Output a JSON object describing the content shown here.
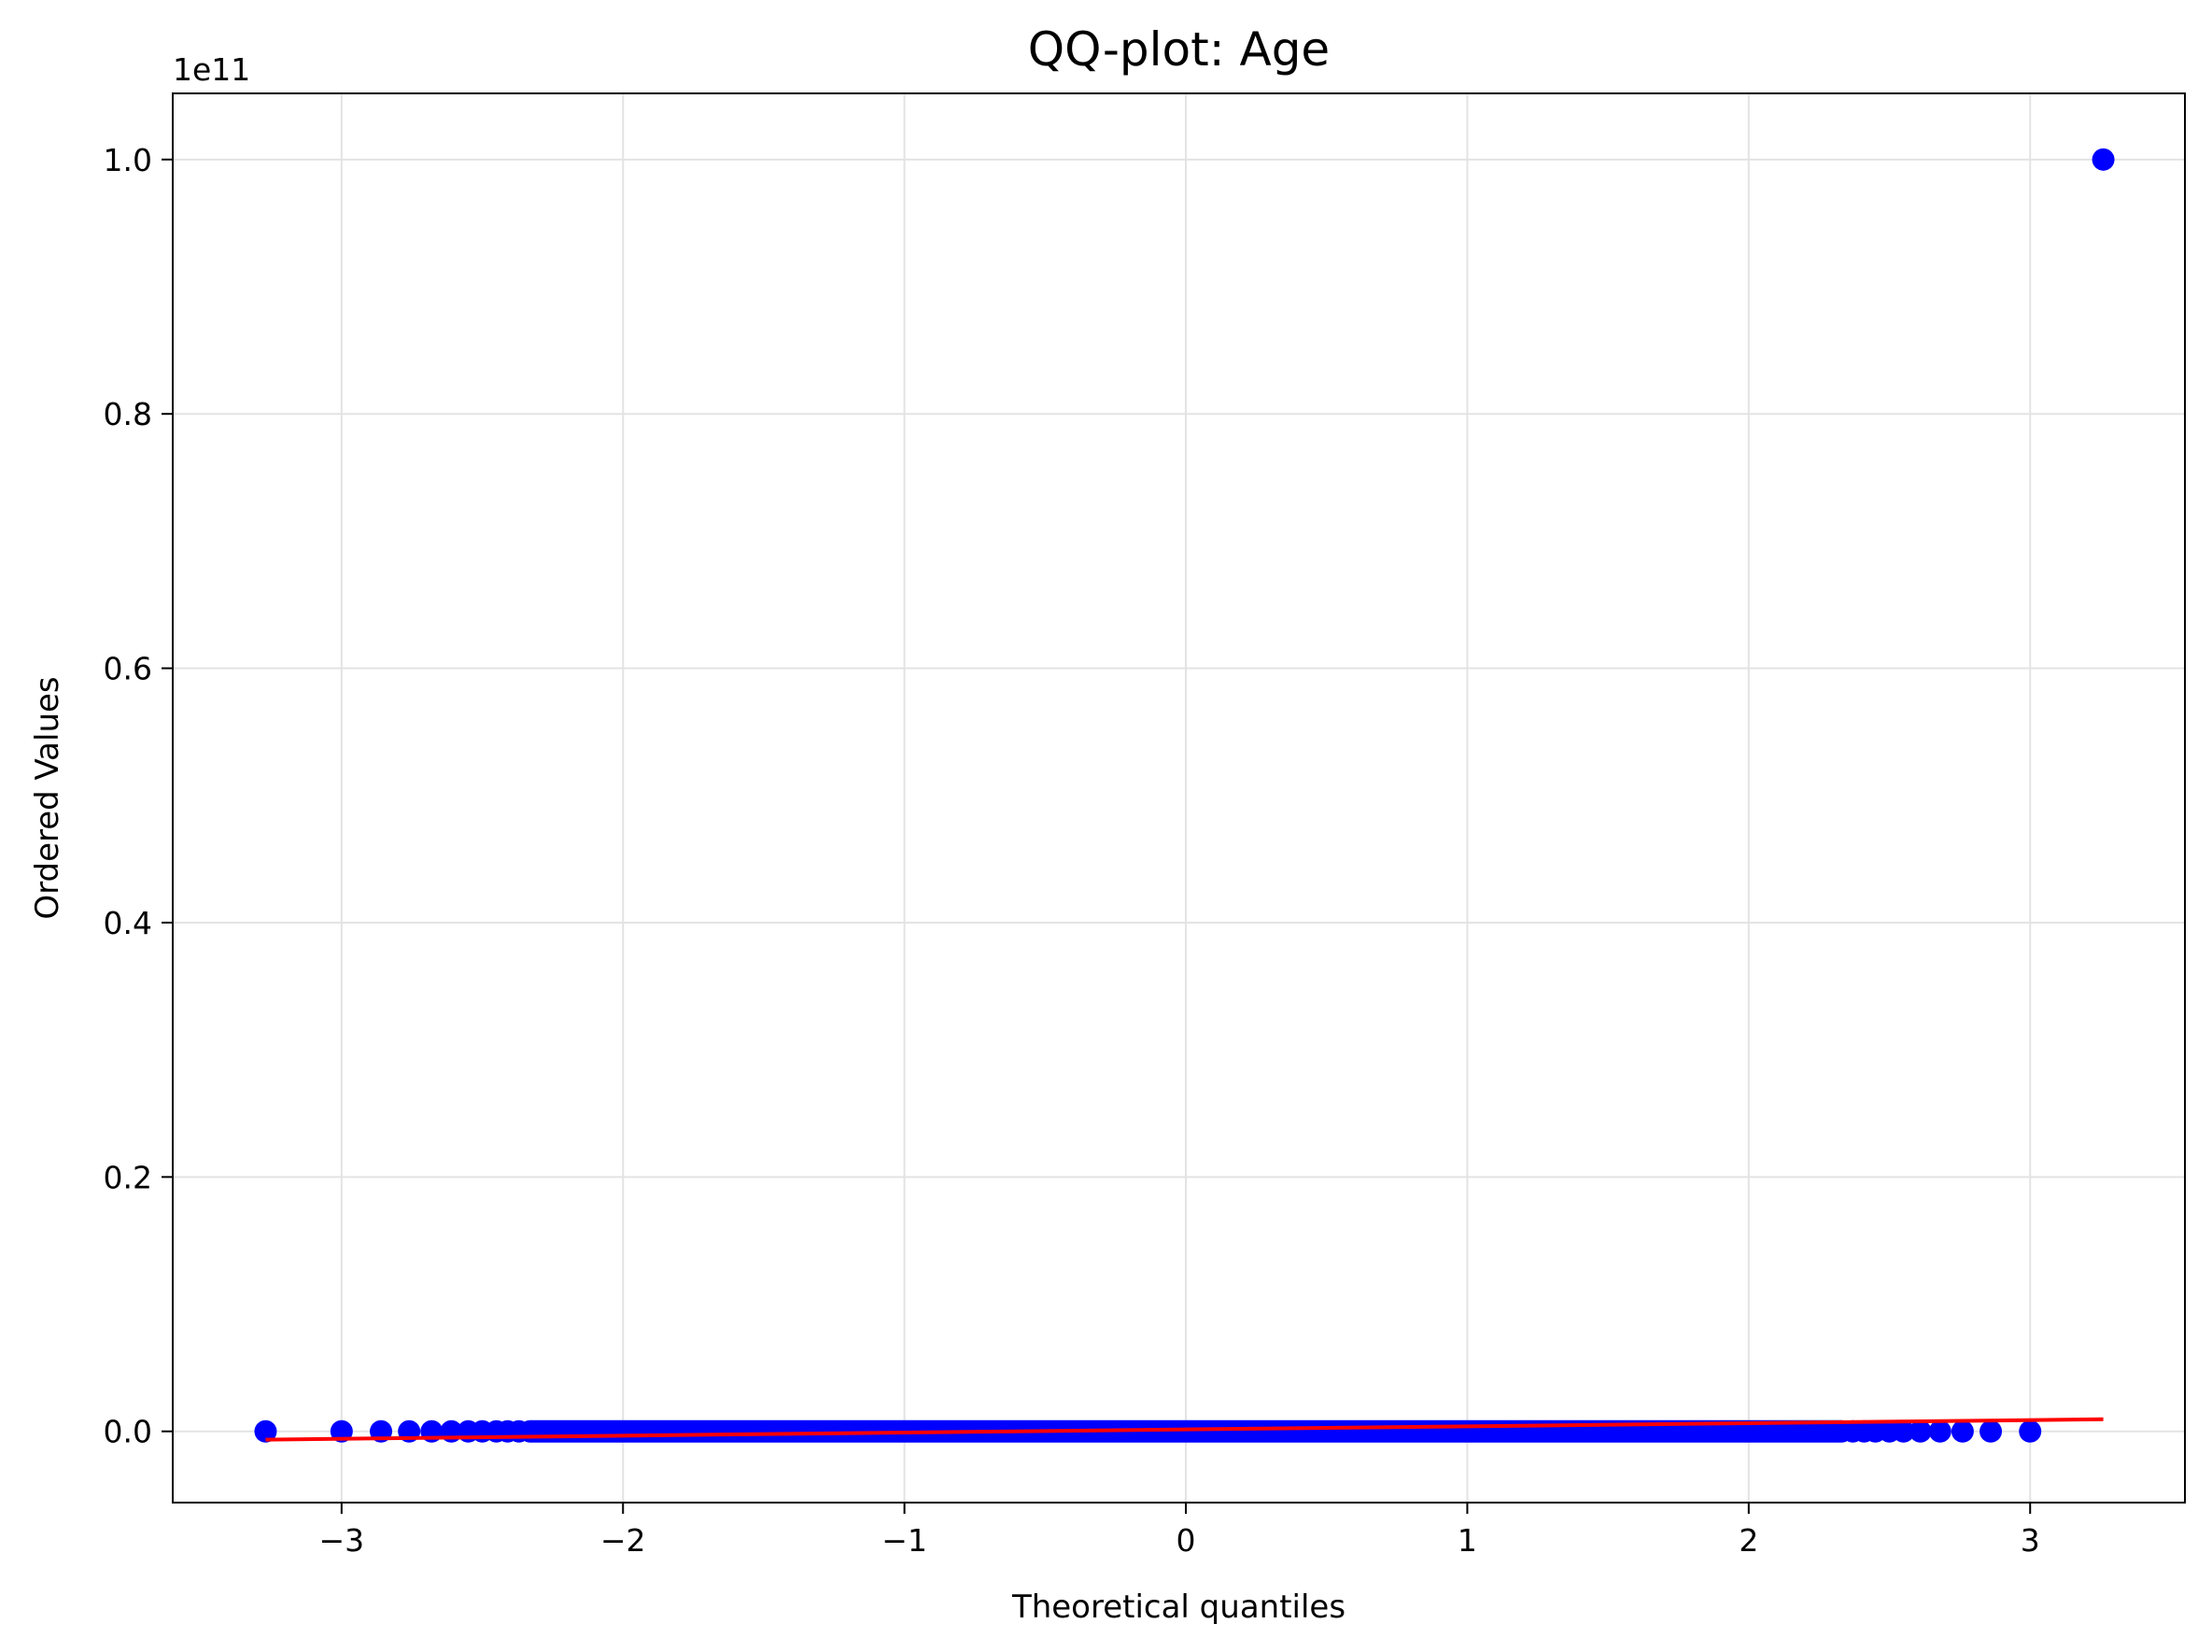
{
  "chart_data": {
    "type": "scatter",
    "title": "QQ-plot: Age",
    "xlabel": "Theoretical quantiles",
    "ylabel": "Ordered Values",
    "y_scale_factor_label": "1e11",
    "xlim": [
      -3.6,
      3.55
    ],
    "ylim": [
      -0.056,
      1.052
    ],
    "x_ticks": [
      -3,
      -2,
      -1,
      0,
      1,
      2,
      3
    ],
    "x_tick_labels": [
      "−3",
      "−2",
      "−1",
      "0",
      "1",
      "2",
      "3"
    ],
    "y_ticks": [
      0.0,
      0.2,
      0.4,
      0.6,
      0.8,
      1.0
    ],
    "y_tick_labels": [
      "0.0",
      "0.2",
      "0.4",
      "0.6",
      "0.8",
      "1.0"
    ],
    "grid": true,
    "series": [
      {
        "kind": "points",
        "color": "#0000ff",
        "x": [
          -3.27,
          -3.0,
          -2.86,
          -2.76,
          -2.68,
          -2.61,
          -2.55,
          -2.5,
          -2.45,
          -2.41,
          -2.37,
          2.37,
          2.41,
          2.45,
          2.5,
          2.55,
          2.61,
          2.68,
          2.76,
          2.86,
          3.0,
          3.26
        ],
        "y": [
          0.0,
          0.0,
          0.0,
          0.0,
          0.0,
          0.0,
          0.0,
          0.0,
          0.0,
          0.0,
          0.0,
          0.0,
          0.0,
          0.0,
          0.0,
          0.0,
          0.0,
          0.0,
          0.0,
          0.0,
          0.0,
          1.0
        ],
        "dense_band_x": [
          -2.37,
          2.37
        ],
        "dense_band_y": 0.0
      },
      {
        "kind": "fit-line",
        "color": "#ff0000",
        "x": [
          -3.27,
          3.26
        ],
        "y": [
          -0.0065,
          0.0095
        ]
      }
    ]
  }
}
